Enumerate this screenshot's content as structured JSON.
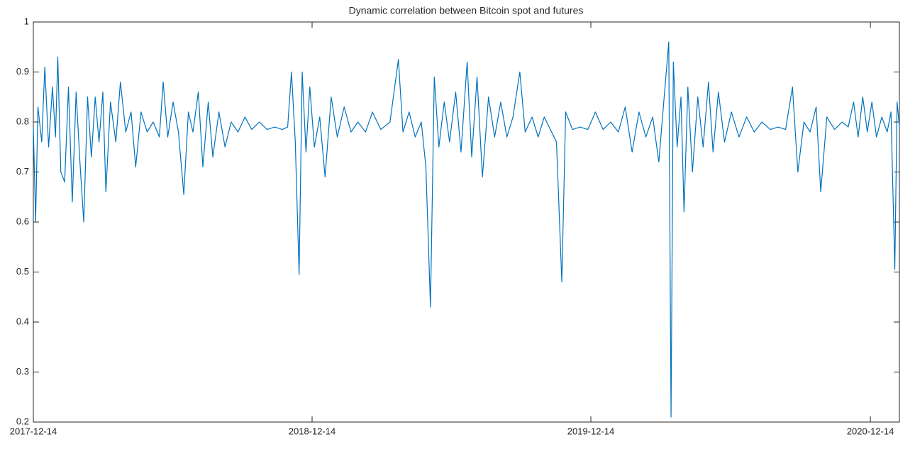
{
  "chart_data": {
    "type": "line",
    "title": "Dynamic correlation between Bitcoin spot and futures",
    "color": "#0072bd",
    "xlim": [
      "2017-12-14",
      "2021-01-21"
    ],
    "xticks": [
      "2017-12-14",
      "2018-12-14",
      "2019-12-14",
      "2020-12-14"
    ],
    "ylim": [
      0.2,
      1
    ],
    "yticks": [
      0.2,
      0.3,
      0.4,
      0.5,
      0.6,
      0.7,
      0.8,
      0.9,
      1
    ],
    "x": [
      "2017-12-14",
      "2017-12-17",
      "2017-12-20",
      "2017-12-25",
      "2017-12-29",
      "2018-01-03",
      "2018-01-08",
      "2018-01-12",
      "2018-01-15",
      "2018-01-19",
      "2018-01-24",
      "2018-01-29",
      "2018-02-03",
      "2018-02-08",
      "2018-02-13",
      "2018-02-18",
      "2018-02-23",
      "2018-02-28",
      "2018-03-05",
      "2018-03-10",
      "2018-03-15",
      "2018-03-19",
      "2018-03-25",
      "2018-04-01",
      "2018-04-07",
      "2018-04-14",
      "2018-04-21",
      "2018-04-27",
      "2018-05-04",
      "2018-05-12",
      "2018-05-20",
      "2018-05-28",
      "2018-06-02",
      "2018-06-08",
      "2018-06-15",
      "2018-06-22",
      "2018-06-29",
      "2018-07-05",
      "2018-07-11",
      "2018-07-18",
      "2018-07-24",
      "2018-07-31",
      "2018-08-06",
      "2018-08-14",
      "2018-08-22",
      "2018-08-30",
      "2018-09-08",
      "2018-09-17",
      "2018-09-26",
      "2018-10-06",
      "2018-10-16",
      "2018-10-26",
      "2018-11-05",
      "2018-11-12",
      "2018-11-17",
      "2018-11-22",
      "2018-11-27",
      "2018-12-01",
      "2018-12-06",
      "2018-12-11",
      "2018-12-17",
      "2018-12-24",
      "2018-12-31",
      "2019-01-08",
      "2019-01-16",
      "2019-01-25",
      "2019-02-03",
      "2019-02-12",
      "2019-02-22",
      "2019-03-03",
      "2019-03-14",
      "2019-03-26",
      "2019-04-06",
      "2019-04-12",
      "2019-04-20",
      "2019-04-28",
      "2019-05-06",
      "2019-05-12",
      "2019-05-18",
      "2019-05-23",
      "2019-05-29",
      "2019-06-05",
      "2019-06-12",
      "2019-06-20",
      "2019-06-27",
      "2019-07-05",
      "2019-07-11",
      "2019-07-18",
      "2019-07-25",
      "2019-08-02",
      "2019-08-10",
      "2019-08-18",
      "2019-08-26",
      "2019-09-03",
      "2019-09-12",
      "2019-09-19",
      "2019-09-28",
      "2019-10-06",
      "2019-10-14",
      "2019-10-22",
      "2019-10-30",
      "2019-11-06",
      "2019-11-11",
      "2019-11-20",
      "2019-11-30",
      "2019-12-10",
      "2019-12-20",
      "2019-12-30",
      "2020-01-09",
      "2020-01-19",
      "2020-01-28",
      "2020-02-06",
      "2020-02-15",
      "2020-02-24",
      "2020-03-04",
      "2020-03-12",
      "2020-03-19",
      "2020-03-25",
      "2020-03-28",
      "2020-03-31",
      "2020-04-05",
      "2020-04-10",
      "2020-04-14",
      "2020-04-19",
      "2020-04-25",
      "2020-05-02",
      "2020-05-09",
      "2020-05-16",
      "2020-05-22",
      "2020-05-29",
      "2020-06-06",
      "2020-06-15",
      "2020-06-25",
      "2020-07-05",
      "2020-07-15",
      "2020-07-25",
      "2020-08-05",
      "2020-08-15",
      "2020-08-25",
      "2020-09-03",
      "2020-09-10",
      "2020-09-18",
      "2020-09-26",
      "2020-10-04",
      "2020-10-10",
      "2020-10-18",
      "2020-10-28",
      "2020-11-07",
      "2020-11-15",
      "2020-11-22",
      "2020-11-28",
      "2020-12-04",
      "2020-12-10",
      "2020-12-16",
      "2020-12-22",
      "2020-12-29",
      "2021-01-05",
      "2021-01-10",
      "2021-01-15",
      "2021-01-18",
      "2021-01-21"
    ],
    "values": [
      0.79,
      0.6,
      0.83,
      0.76,
      0.91,
      0.75,
      0.87,
      0.77,
      0.93,
      0.7,
      0.68,
      0.87,
      0.64,
      0.86,
      0.72,
      0.6,
      0.85,
      0.73,
      0.85,
      0.76,
      0.86,
      0.66,
      0.84,
      0.76,
      0.88,
      0.78,
      0.82,
      0.71,
      0.82,
      0.78,
      0.8,
      0.77,
      0.88,
      0.77,
      0.84,
      0.78,
      0.655,
      0.82,
      0.78,
      0.86,
      0.71,
      0.84,
      0.73,
      0.82,
      0.75,
      0.8,
      0.78,
      0.81,
      0.785,
      0.8,
      0.785,
      0.79,
      0.785,
      0.79,
      0.9,
      0.76,
      0.495,
      0.9,
      0.74,
      0.87,
      0.75,
      0.81,
      0.69,
      0.85,
      0.77,
      0.83,
      0.78,
      0.8,
      0.78,
      0.82,
      0.785,
      0.8,
      0.925,
      0.78,
      0.82,
      0.77,
      0.8,
      0.71,
      0.43,
      0.89,
      0.75,
      0.84,
      0.76,
      0.86,
      0.74,
      0.92,
      0.73,
      0.89,
      0.69,
      0.85,
      0.77,
      0.84,
      0.77,
      0.81,
      0.9,
      0.78,
      0.81,
      0.77,
      0.81,
      0.785,
      0.76,
      0.48,
      0.82,
      0.785,
      0.79,
      0.785,
      0.82,
      0.785,
      0.8,
      0.78,
      0.83,
      0.74,
      0.82,
      0.77,
      0.81,
      0.72,
      0.85,
      0.96,
      0.21,
      0.92,
      0.75,
      0.85,
      0.62,
      0.87,
      0.7,
      0.85,
      0.75,
      0.88,
      0.74,
      0.86,
      0.76,
      0.82,
      0.77,
      0.81,
      0.78,
      0.8,
      0.785,
      0.79,
      0.785,
      0.87,
      0.7,
      0.8,
      0.78,
      0.83,
      0.66,
      0.81,
      0.785,
      0.8,
      0.79,
      0.84,
      0.77,
      0.85,
      0.78,
      0.84,
      0.77,
      0.81,
      0.78,
      0.82,
      0.505,
      0.84,
      0.79
    ]
  }
}
